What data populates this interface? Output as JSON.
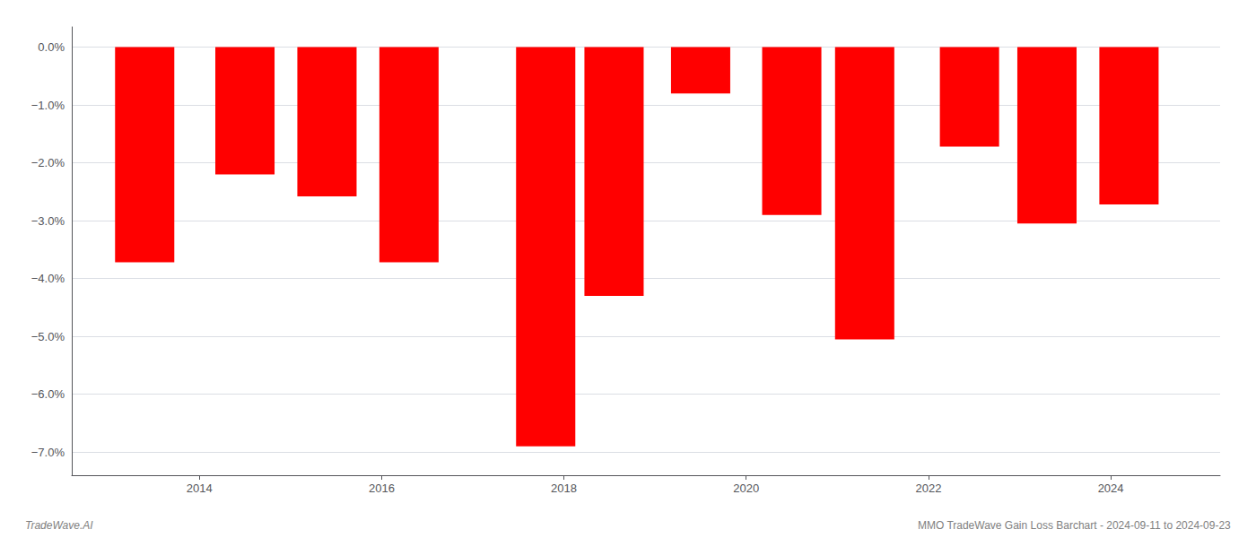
{
  "chart_data": {
    "type": "bar",
    "x": [
      2013.4,
      2014.5,
      2015.4,
      2016.3,
      2017.8,
      2018.55,
      2019.5,
      2020.5,
      2021.3,
      2022.45,
      2023.3,
      2024.2
    ],
    "values": [
      -3.72,
      -2.2,
      -2.58,
      -3.72,
      -6.9,
      -4.3,
      -0.8,
      -2.9,
      -5.05,
      -1.72,
      -3.05,
      -2.72
    ],
    "color": "#ff0000",
    "xlim": [
      2012.6,
      2025.2
    ],
    "xticks": [
      2014,
      2016,
      2018,
      2020,
      2022,
      2024
    ],
    "ylim": [
      -7.4,
      0.35
    ],
    "yticks": [
      {
        "value": 0.0,
        "label": "0.0%"
      },
      {
        "value": -1.0,
        "label": "−1.0%"
      },
      {
        "value": -2.0,
        "label": "−2.0%"
      },
      {
        "value": -3.0,
        "label": "−3.0%"
      },
      {
        "value": -4.0,
        "label": "−4.0%"
      },
      {
        "value": -5.0,
        "label": "−5.0%"
      },
      {
        "value": -6.0,
        "label": "−6.0%"
      },
      {
        "value": -7.0,
        "label": "−7.0%"
      }
    ],
    "grid": true,
    "annotations": [
      "TradeWave.AI",
      "MMO TradeWave Gain Loss Barchart - 2024-09-11 to 2024-09-23"
    ]
  }
}
